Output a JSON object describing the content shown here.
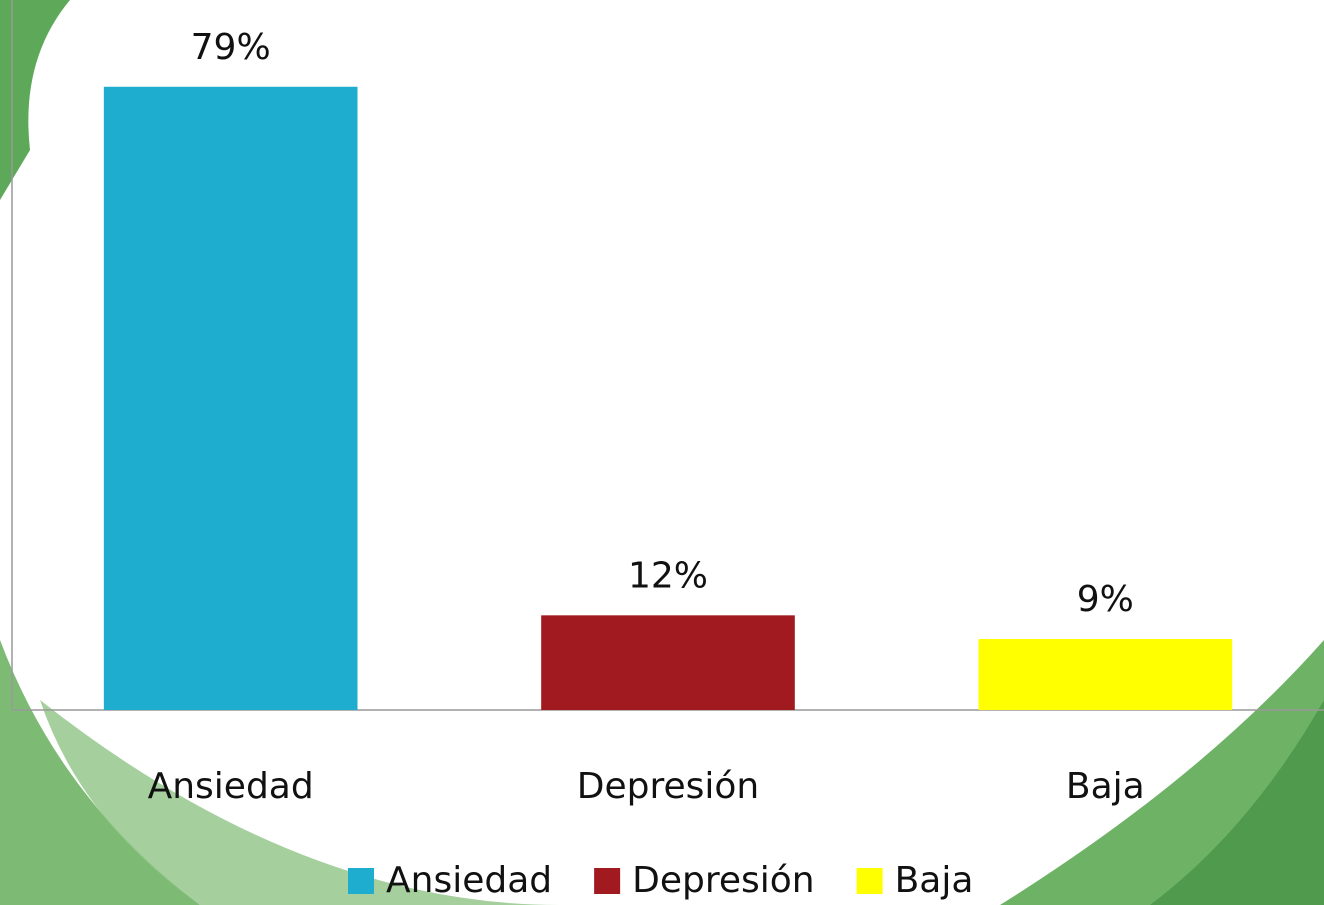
{
  "chart_data": {
    "type": "bar",
    "categories": [
      "Ansiedad",
      "Depresión",
      "Baja"
    ],
    "values": [
      79,
      12,
      9
    ],
    "value_labels": [
      "79%",
      "12%",
      "9%"
    ],
    "colors": [
      "#1fadcf",
      "#a11a20",
      "#ffff00"
    ],
    "ylim": [
      0,
      90
    ],
    "legend": "bottom"
  }
}
